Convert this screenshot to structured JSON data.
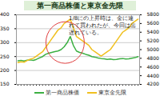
{
  "chart_data": {
    "type": "line",
    "title": "第一商品株価と東京金先限",
    "annotation": "1/8にの上昇時は、金に連れて買われたが、今回は出遅れている。",
    "categories": [
      null,
      null,
      null,
      null,
      null,
      null,
      null,
      null,
      null,
      null,
      null,
      null,
      null,
      null,
      null,
      null,
      null,
      null,
      null,
      null,
      null,
      null,
      null,
      null,
      null,
      null,
      null,
      null,
      null,
      null,
      null,
      null,
      null,
      null,
      null,
      null,
      null,
      null,
      null,
      null
    ],
    "series": [
      {
        "name": "第一商品株価",
        "color": "#3cb043",
        "values": [
          235,
          236,
          234,
          237,
          238,
          236,
          240,
          245,
          250,
          258,
          262,
          265,
          268,
          270,
          275,
          285,
          300,
          322,
          290,
          270,
          265,
          262,
          258,
          255,
          250,
          248,
          245,
          243,
          242,
          240,
          241,
          239,
          240,
          242,
          243,
          241,
          242,
          244,
          246,
          250
        ]
      },
      {
        "name": "東京金先限",
        "color": "#f0c020",
        "axis": "y2",
        "values": [
          4700,
          4720,
          4710,
          4750,
          4780,
          4800,
          4850,
          4900,
          4950,
          5050,
          5150,
          5250,
          5350,
          5450,
          5500,
          5600,
          5650,
          5700,
          5500,
          5300,
          5250,
          5200,
          5150,
          5100,
          5000,
          4950,
          4900,
          4850,
          4900,
          4950,
          5000,
          5100,
          5200,
          5300,
          5400,
          5450,
          5500,
          5600,
          5650,
          5700
        ]
      }
    ],
    "ylim": [
      150,
      400
    ],
    "yticks": [
      150,
      200,
      250,
      300,
      350,
      400
    ],
    "y2lim": [
      4200,
      5800
    ],
    "y2ticks": [
      4200,
      4400,
      4600,
      4800,
      5000,
      5200,
      5400,
      5600,
      5800
    ],
    "grid": true
  }
}
